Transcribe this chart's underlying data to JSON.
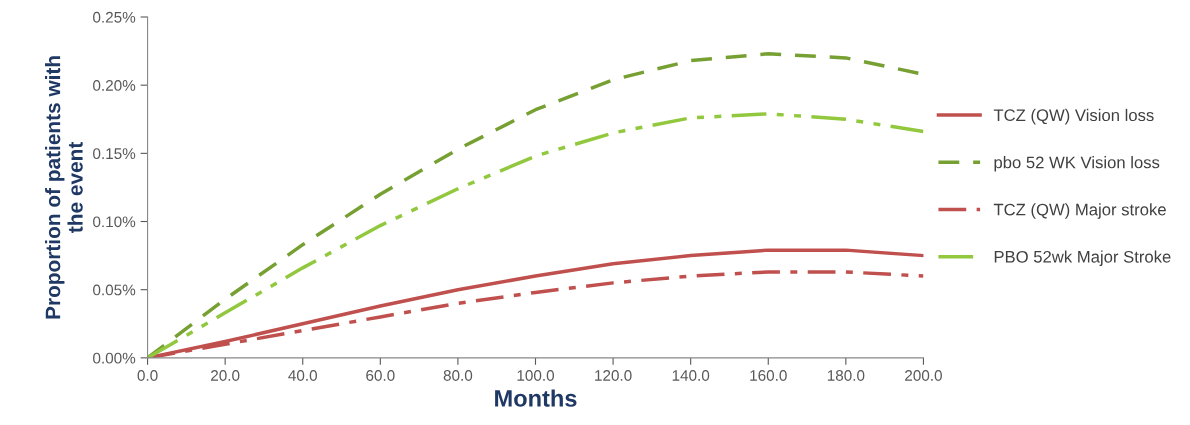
{
  "chart_data": {
    "type": "line",
    "xlabel": "Months",
    "ylabel": "Proportion of patients with\nthe event",
    "x": [
      0,
      20,
      40,
      60,
      80,
      100,
      120,
      140,
      160,
      180,
      200
    ],
    "series": [
      {
        "name": "TCZ (QW) Vision loss",
        "color": "#c0504d",
        "line_style": "solid",
        "values": [
          0,
          0.012,
          0.025,
          0.038,
          0.05,
          0.06,
          0.069,
          0.075,
          0.079,
          0.079,
          0.075
        ]
      },
      {
        "name": "pbo 52 WK Vision loss",
        "color": "#77a033",
        "line_style": "dashed",
        "values": [
          0,
          0.043,
          0.083,
          0.12,
          0.153,
          0.182,
          0.204,
          0.218,
          0.223,
          0.22,
          0.208
        ]
      },
      {
        "name": "TCZ (QW) Major stroke",
        "color": "#c0504d",
        "line_style": "dashdot",
        "values": [
          0,
          0.01,
          0.02,
          0.03,
          0.04,
          0.048,
          0.055,
          0.06,
          0.063,
          0.063,
          0.06
        ]
      },
      {
        "name": "PBO 52wk Major Stroke",
        "color": "#92c83e",
        "line_style": "dashdotdot",
        "values": [
          0,
          0.033,
          0.066,
          0.097,
          0.124,
          0.148,
          0.165,
          0.176,
          0.179,
          0.175,
          0.166
        ]
      }
    ],
    "xlim": [
      0,
      200
    ],
    "xticks": [
      {
        "value": 0,
        "label": "0.0"
      },
      {
        "value": 20,
        "label": "20.0"
      },
      {
        "value": 40,
        "label": "40.0"
      },
      {
        "value": 60,
        "label": "60.0"
      },
      {
        "value": 80,
        "label": "80.0"
      },
      {
        "value": 100,
        "label": "100.0"
      },
      {
        "value": 120,
        "label": "120.0"
      },
      {
        "value": 140,
        "label": "140.0"
      },
      {
        "value": 160,
        "label": "160.0"
      },
      {
        "value": 180,
        "label": "180.0"
      },
      {
        "value": 200,
        "label": "200.0"
      }
    ],
    "ylim": [
      0,
      0.25
    ],
    "yticks": [
      {
        "value": 0,
        "label": "0.00%"
      },
      {
        "value": 0.05,
        "label": "0.05%"
      },
      {
        "value": 0.1,
        "label": "0.10%"
      },
      {
        "value": 0.15,
        "label": "0.15%"
      },
      {
        "value": 0.2,
        "label": "0.20%"
      },
      {
        "value": 0.25,
        "label": "0.25%"
      }
    ],
    "grid": false,
    "legend": "right",
    "marker": "none"
  }
}
